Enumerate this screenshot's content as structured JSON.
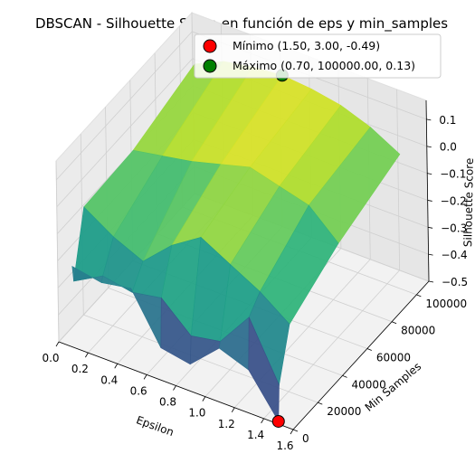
{
  "chart_data": {
    "type": "surface3d",
    "title": "DBSCAN - Silhouette Score en función de eps y min_samples",
    "xlabel": "Epsilon",
    "ylabel": "Min Samples",
    "zlabel": "Silhouette Score",
    "xlim": [
      0.0,
      1.6
    ],
    "ylim": [
      0,
      110000
    ],
    "zlim": [
      -0.5,
      0.17
    ],
    "x_ticks": [
      "0.0",
      "0.2",
      "0.4",
      "0.6",
      "0.8",
      "1.0",
      "1.2",
      "1.4",
      "1.6"
    ],
    "y_ticks": [
      "0",
      "20000",
      "40000",
      "60000",
      "80000",
      "100000"
    ],
    "z_ticks": [
      "−0.5",
      "−0.4",
      "−0.3",
      "−0.2",
      "−0.1",
      "0.0",
      "0.1"
    ],
    "colormap": "viridis",
    "grid": true,
    "legend_position": "top-right",
    "eps": [
      0.1,
      0.3,
      0.5,
      0.7,
      0.9,
      1.1,
      1.3,
      1.5
    ],
    "min_samples": [
      3,
      1000,
      10000,
      50000,
      100000
    ],
    "silhouette_grid": [
      [
        -0.2,
        -0.26,
        -0.03,
        -0.02,
        0.05
      ],
      [
        -0.22,
        -0.2,
        -0.1,
        0.0,
        0.1
      ],
      [
        -0.2,
        -0.22,
        -0.15,
        0.02,
        0.12
      ],
      [
        -0.38,
        -0.2,
        -0.05,
        0.05,
        0.13
      ],
      [
        -0.4,
        -0.3,
        0.02,
        0.08,
        0.12
      ],
      [
        -0.3,
        -0.28,
        -0.04,
        0.05,
        0.1
      ],
      [
        -0.34,
        -0.15,
        -0.1,
        0.02,
        0.06
      ],
      [
        -0.49,
        -0.36,
        -0.18,
        -0.08,
        0.0
      ]
    ],
    "markers": [
      {
        "name": "Mínimo",
        "label": "Mínimo (1.50, 3.00, -0.49)",
        "x": 1.5,
        "y": 3.0,
        "z": -0.49,
        "color": "#ff0000"
      },
      {
        "name": "Máximo",
        "label": "Máximo (0.70, 100000.00, 0.13)",
        "x": 0.7,
        "y": 100000.0,
        "z": 0.13,
        "color": "#008000"
      }
    ]
  }
}
